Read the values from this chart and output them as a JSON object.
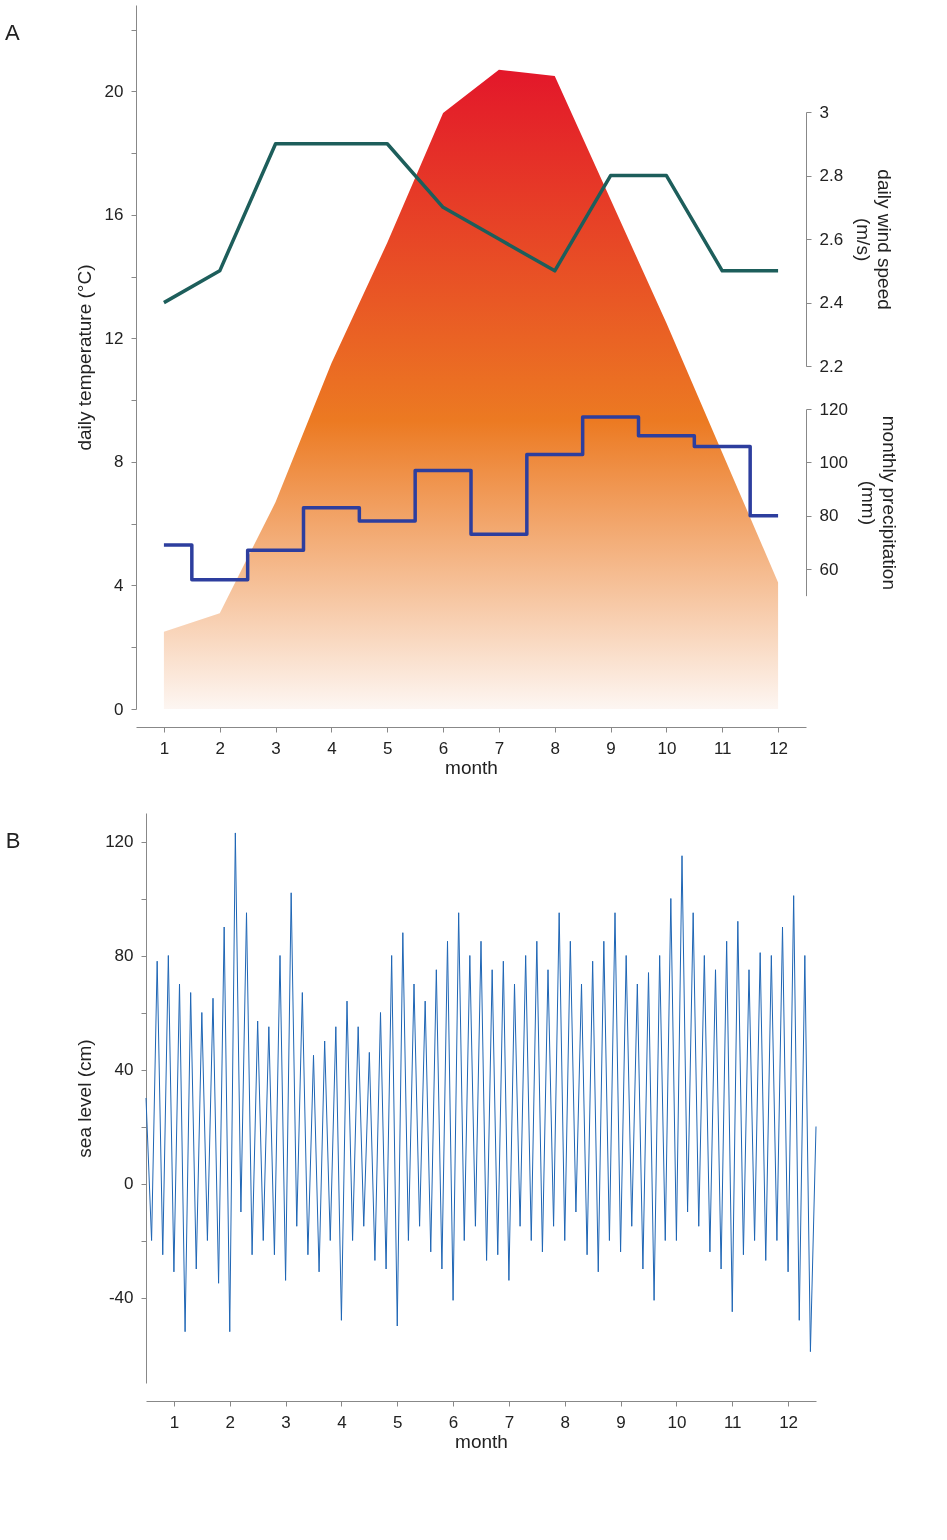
{
  "chart_data": [
    {
      "type": "area",
      "title": "A",
      "xlabel": "month",
      "ylabel": "daily temperature (°C)",
      "y2label": "daily wind speed (m/s)",
      "y3label": "monthly precipitation (mm)",
      "x": [
        1,
        2,
        3,
        4,
        5,
        6,
        7,
        8,
        9,
        10,
        11,
        12
      ],
      "xlim": [
        0.5,
        12.5
      ],
      "xticks": [
        1,
        2,
        3,
        4,
        5,
        6,
        7,
        8,
        9,
        10,
        11,
        12
      ],
      "ylim": [
        0,
        22.8
      ],
      "yticks": [
        0,
        {
          "value": 2,
          "label": null
        },
        4,
        {
          "value": 6,
          "label": null
        },
        8,
        {
          "value": 10,
          "label": null
        },
        12,
        {
          "value": 14,
          "label": null
        },
        16,
        {
          "value": 18,
          "label": null
        },
        20,
        {
          "value": 22,
          "label": null
        }
      ],
      "y2lim": [
        2.2,
        3
      ],
      "y2ticks": [
        2.2,
        2.4,
        2.6,
        2.8,
        3
      ],
      "y3lim": [
        50,
        120
      ],
      "y3ticks": [
        60,
        80,
        100,
        120
      ],
      "series": [
        {
          "color": "#e3172a",
          "values": [
            2.5,
            3.1,
            6.7,
            11.2,
            15.1,
            19.3,
            20.7,
            20.5,
            16.5,
            12.5,
            8.3,
            4.1
          ]
        },
        {
          "type": "line",
          "axis": "y2",
          "color": "#1d5e5b",
          "values": [
            2.4,
            2.5,
            2.9,
            2.9,
            2.9,
            2.7,
            2.6,
            2.5,
            2.8,
            2.8,
            2.5,
            2.5
          ]
        },
        {
          "type": "step",
          "axis": "y3",
          "color": "#2d3e9e",
          "values": [
            69,
            56,
            67,
            83,
            78,
            97,
            73,
            103,
            117,
            110,
            106,
            80
          ]
        }
      ]
    },
    {
      "type": "line",
      "title": "B",
      "xlabel": "month",
      "ylabel": "sea level (cm)",
      "color": "#1f66b5",
      "xlim": [
        0.5,
        12.5
      ],
      "xticks": [
        1,
        2,
        3,
        4,
        5,
        6,
        7,
        8,
        9,
        10,
        11,
        12
      ],
      "ylim": [
        -70,
        130
      ],
      "yticks": [
        -40,
        {
          "value": -20,
          "label": null
        },
        0,
        {
          "value": 20,
          "label": null
        },
        40,
        {
          "value": 60,
          "label": null
        },
        80,
        {
          "value": 100,
          "label": null
        },
        120
      ],
      "x": [
        0.5,
        0.6,
        0.7,
        0.8,
        0.9,
        1.0,
        1.1,
        1.2,
        1.3,
        1.4,
        1.5,
        1.6,
        1.7,
        1.8,
        1.9,
        2.0,
        2.1,
        2.2,
        2.3,
        2.4,
        2.5,
        2.6,
        2.7,
        2.8,
        2.9,
        3.0,
        3.1,
        3.2,
        3.3,
        3.4,
        3.5,
        3.6,
        3.7,
        3.8,
        3.9,
        4.0,
        4.1,
        4.2,
        4.3,
        4.4,
        4.5,
        4.6,
        4.7,
        4.8,
        4.9,
        5.0,
        5.1,
        5.2,
        5.3,
        5.4,
        5.5,
        5.6,
        5.7,
        5.8,
        5.9,
        6.0,
        6.1,
        6.2,
        6.3,
        6.4,
        6.5,
        6.6,
        6.7,
        6.8,
        6.9,
        7.0,
        7.1,
        7.2,
        7.3,
        7.4,
        7.5,
        7.6,
        7.7,
        7.8,
        7.9,
        8.0,
        8.1,
        8.2,
        8.3,
        8.4,
        8.5,
        8.6,
        8.7,
        8.8,
        8.9,
        9.0,
        9.1,
        9.2,
        9.3,
        9.4,
        9.5,
        9.6,
        9.7,
        9.8,
        9.9,
        10.0,
        10.1,
        10.2,
        10.3,
        10.4,
        10.5,
        10.6,
        10.7,
        10.8,
        10.9,
        11.0,
        11.1,
        11.2,
        11.3,
        11.4,
        11.5,
        11.6,
        11.7,
        11.8,
        11.9,
        12.0,
        12.1,
        12.2,
        12.3,
        12.4,
        12.5
      ],
      "values": [
        30,
        -20,
        78,
        -25,
        80,
        -31,
        70,
        -52,
        67,
        -30,
        60,
        -20,
        65,
        -35,
        90,
        -52,
        123,
        -10,
        95,
        -25,
        57,
        -20,
        55,
        -25,
        80,
        -34,
        102,
        -15,
        67,
        -25,
        45,
        -31,
        50,
        -20,
        55,
        -48,
        64,
        -20,
        55,
        -15,
        46,
        -27,
        60,
        -30,
        80,
        -50,
        88,
        -20,
        70,
        -15,
        64,
        -24,
        75,
        -30,
        85,
        -41,
        95,
        -20,
        80,
        -15,
        85,
        -27,
        75,
        -25,
        78,
        -34,
        70,
        -15,
        80,
        -20,
        85,
        -24,
        75,
        -15,
        95,
        -20,
        85,
        -10,
        70,
        -25,
        78,
        -31,
        85,
        -20,
        95,
        -24,
        80,
        -15,
        70,
        -30,
        74,
        -41,
        80,
        -20,
        100,
        -20,
        115,
        -10,
        95,
        -15,
        80,
        -24,
        75,
        -30,
        85,
        -45,
        92,
        -25,
        75,
        -20,
        81,
        -27,
        80,
        -20,
        90,
        -31,
        101,
        -48,
        80,
        -59,
        20
      ]
    }
  ]
}
